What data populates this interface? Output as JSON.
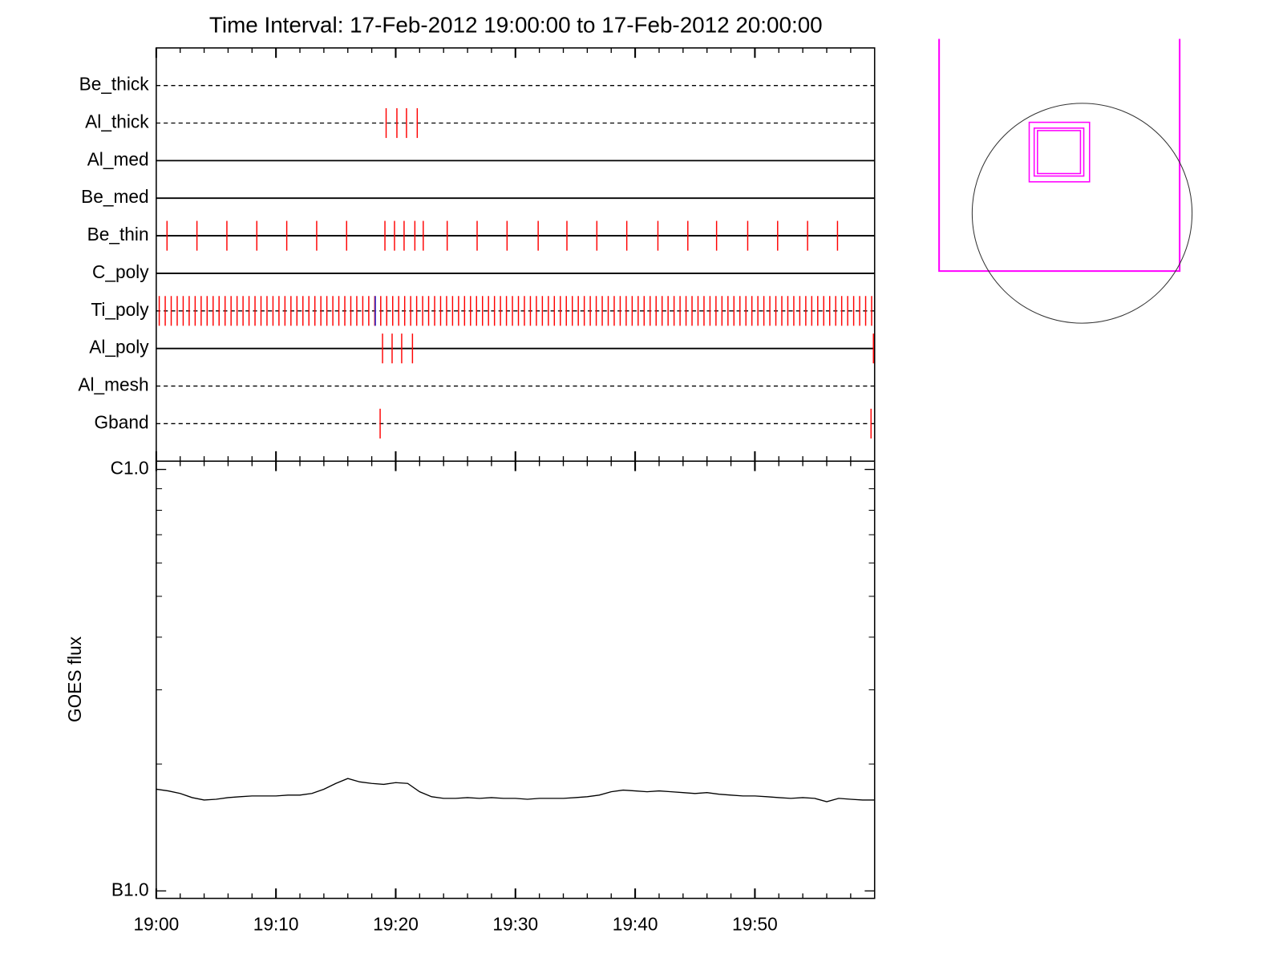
{
  "chart_data": [
    {
      "type": "timeline",
      "title": "Time Interval: 17-Feb-2012 19:00:00 to 17-Feb-2012 20:00:00",
      "xlim": [
        0,
        60
      ],
      "event_color": "#ff0000",
      "rows": [
        {
          "name": "Be_thick",
          "line_style": "dashed",
          "events": []
        },
        {
          "name": "Al_thick",
          "line_style": "dashed",
          "events": [
            19.2,
            20.1,
            20.9,
            21.8
          ]
        },
        {
          "name": "Al_med",
          "line_style": "solid",
          "events": []
        },
        {
          "name": "Be_med",
          "line_style": "solid",
          "events": []
        },
        {
          "name": "Be_thin",
          "line_style": "solid",
          "events": [
            0.9,
            3.4,
            5.9,
            8.4,
            10.9,
            13.4,
            15.9,
            19.1,
            19.9,
            20.7,
            21.6,
            22.3,
            24.3,
            26.8,
            29.3,
            31.9,
            34.3,
            36.8,
            39.3,
            41.9,
            44.4,
            46.8,
            49.4,
            51.9,
            54.4,
            56.9
          ]
        },
        {
          "name": "C_poly",
          "line_style": "solid",
          "events": []
        },
        {
          "name": "Ti_poly",
          "line_style": "dashed",
          "events": [
            0.25,
            0.75,
            1.25,
            1.75,
            2.25,
            2.75,
            3.25,
            3.75,
            4.25,
            4.75,
            5.25,
            5.75,
            6.25,
            6.75,
            7.25,
            7.75,
            8.25,
            8.75,
            9.25,
            9.75,
            10.25,
            10.75,
            11.25,
            11.75,
            12.25,
            12.75,
            13.25,
            13.75,
            14.25,
            14.75,
            15.25,
            15.75,
            16.25,
            16.75,
            17.25,
            17.75,
            18.25,
            18.75,
            19.25,
            19.75,
            20.25,
            20.75,
            21.25,
            21.75,
            22.25,
            22.75,
            23.25,
            23.75,
            24.25,
            24.75,
            25.25,
            25.75,
            26.25,
            26.75,
            27.25,
            27.75,
            28.25,
            28.75,
            29.25,
            29.75,
            30.25,
            30.75,
            31.25,
            31.75,
            32.25,
            32.75,
            33.25,
            33.75,
            34.25,
            34.75,
            35.25,
            35.75,
            36.25,
            36.75,
            37.25,
            37.75,
            38.25,
            38.75,
            39.25,
            39.75,
            40.25,
            40.75,
            41.25,
            41.75,
            42.25,
            42.75,
            43.25,
            43.75,
            44.25,
            44.75,
            45.25,
            45.75,
            46.25,
            46.75,
            47.25,
            47.75,
            48.25,
            48.75,
            49.25,
            49.75,
            50.25,
            50.75,
            51.25,
            51.75,
            52.25,
            52.75,
            53.25,
            53.75,
            54.25,
            54.75,
            55.25,
            55.75,
            56.25,
            56.75,
            57.25,
            57.75,
            58.25,
            58.75,
            59.25,
            59.75
          ],
          "other_events": [
            18.3
          ],
          "other_color": "#3333cc"
        },
        {
          "name": "Al_poly",
          "line_style": "solid",
          "events": [
            18.9,
            19.7,
            20.5,
            21.4,
            59.9
          ]
        },
        {
          "name": "Al_mesh",
          "line_style": "dashed",
          "events": []
        },
        {
          "name": "Gband",
          "line_style": "dashed",
          "events": [
            18.7,
            59.7
          ]
        }
      ]
    },
    {
      "type": "line",
      "ylabel": "GOES flux",
      "log_y": true,
      "xlim": [
        0,
        60
      ],
      "xticks": [
        {
          "value": 0,
          "label": "19:00"
        },
        {
          "value": 10,
          "label": "19:10"
        },
        {
          "value": 20,
          "label": "19:20"
        },
        {
          "value": 30,
          "label": "19:30"
        },
        {
          "value": 40,
          "label": "19:40"
        },
        {
          "value": 50,
          "label": "19:50"
        }
      ],
      "xminorticks": [
        2,
        4,
        6,
        8,
        12,
        14,
        16,
        18,
        22,
        24,
        26,
        28,
        32,
        34,
        36,
        38,
        42,
        44,
        46,
        48,
        52,
        54,
        56,
        58
      ],
      "ylim": [
        1e-07,
        1e-06
      ],
      "yticks": [
        {
          "value": 1e-07,
          "label": "B1.0"
        },
        {
          "value": 1e-06,
          "label": "C1.0"
        }
      ],
      "yminorticks": [
        2e-07,
        3e-07,
        4e-07,
        5e-07,
        6e-07,
        7e-07,
        8e-07,
        9e-07
      ],
      "color": "#000000",
      "x": [
        0,
        1,
        2,
        3,
        4,
        5,
        6,
        7,
        8,
        9,
        10,
        11,
        12,
        13,
        14,
        15,
        16,
        17,
        18,
        19,
        20,
        21,
        22,
        23,
        24,
        25,
        26,
        27,
        28,
        29,
        30,
        31,
        32,
        33,
        34,
        35,
        36,
        37,
        38,
        39,
        40,
        41,
        42,
        43,
        44,
        45,
        46,
        47,
        48,
        49,
        50,
        51,
        52,
        53,
        54,
        55,
        56,
        57,
        58,
        59,
        60
      ],
      "values": [
        1.743e-07,
        1.727e-07,
        1.703e-07,
        1.665e-07,
        1.643e-07,
        1.65e-07,
        1.665e-07,
        1.673e-07,
        1.68e-07,
        1.68e-07,
        1.68e-07,
        1.688e-07,
        1.688e-07,
        1.703e-07,
        1.743e-07,
        1.799e-07,
        1.848e-07,
        1.814e-07,
        1.799e-07,
        1.79e-07,
        1.807e-07,
        1.799e-07,
        1.719e-07,
        1.673e-07,
        1.658e-07,
        1.658e-07,
        1.665e-07,
        1.658e-07,
        1.665e-07,
        1.658e-07,
        1.658e-07,
        1.65e-07,
        1.658e-07,
        1.658e-07,
        1.658e-07,
        1.665e-07,
        1.673e-07,
        1.688e-07,
        1.719e-07,
        1.735e-07,
        1.727e-07,
        1.719e-07,
        1.727e-07,
        1.719e-07,
        1.711e-07,
        1.703e-07,
        1.711e-07,
        1.696e-07,
        1.688e-07,
        1.68e-07,
        1.68e-07,
        1.673e-07,
        1.665e-07,
        1.658e-07,
        1.665e-07,
        1.658e-07,
        1.628e-07,
        1.658e-07,
        1.65e-07,
        1.643e-07,
        1.643e-07
      ]
    }
  ]
}
